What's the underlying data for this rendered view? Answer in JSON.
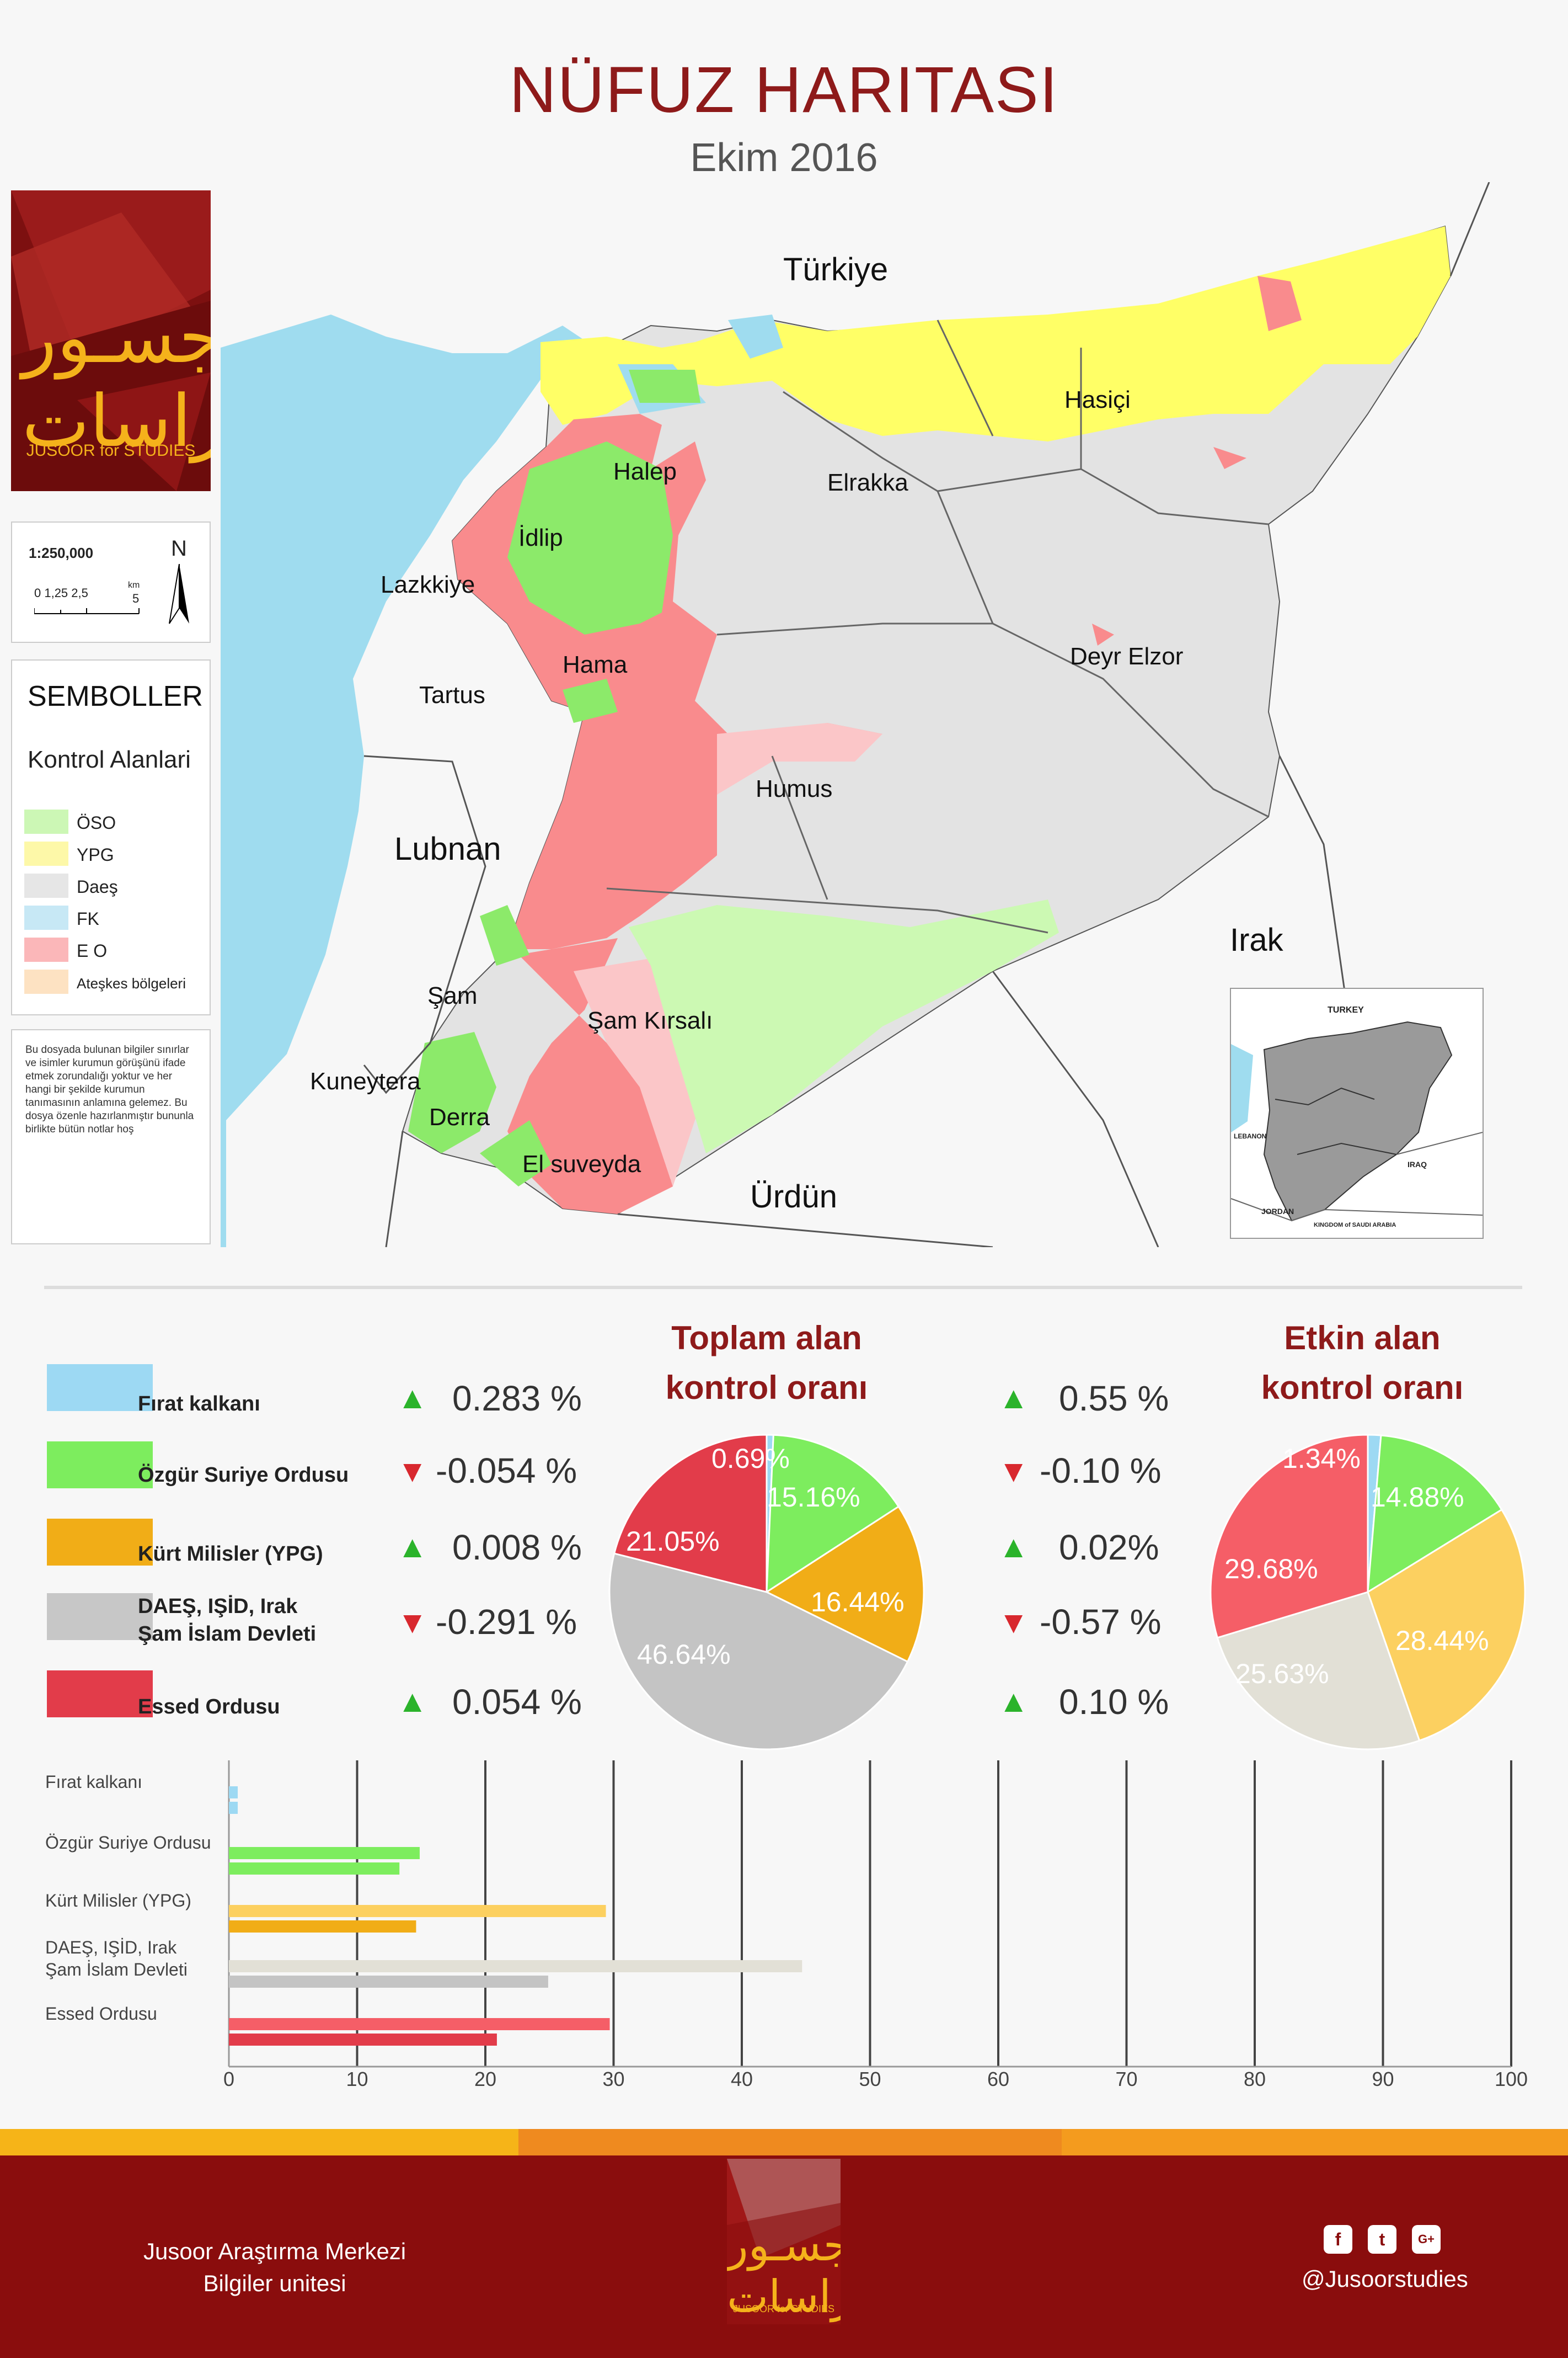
{
  "header": {
    "title": "NÜFUZ HARITASI",
    "subtitle": "Ekim  2016"
  },
  "logo": {
    "arabic": "جسـور للدراسات",
    "english": "JUSOOR for STUDIES"
  },
  "scale": {
    "ratio": "1:250,000",
    "ticks": "0  1,25   2,5",
    "km_label": "km",
    "km_value": "5",
    "north": "N"
  },
  "legend": {
    "title": "SEMBOLLER",
    "subtitle": "Kontrol Alanlari",
    "items": [
      {
        "label": "ÖSO",
        "color": "#ccf7b5"
      },
      {
        "label": "YPG",
        "color": "#fdf8a8"
      },
      {
        "label": "Daeş",
        "color": "#e6e6e6"
      },
      {
        "label": "FK",
        "color": "#c7e8f5"
      },
      {
        "label": "E O",
        "color": "#fbb7b9"
      },
      {
        "label": "Ateşkes bölgeleri",
        "color": "#fde2c2"
      }
    ]
  },
  "note": "Bu dosyada bulunan bilgiler sınırlar ve isimler kurumun görüşünü ifade etmek zorundalığı yoktur ve her hangi bir şekilde kurumun tanımasının anlamına gelemez. Bu dosya özenle hazırlanmıştır bununla birlikte bütün notlar hoş",
  "map": {
    "countries": {
      "turkey": "Türkiye",
      "lebanon": "Lubnan",
      "iraq": "Irak",
      "jordan": "Ürdün"
    },
    "places": {
      "halep": "Halep",
      "idlip": "İdlip",
      "lazkiye": "Lazkkiye",
      "hama": "Hama",
      "tartus": "Tartus",
      "elrakka": "Elrakka",
      "hasici": "Hasiçi",
      "deyr": "Deyr Elzor",
      "humus": "Humus",
      "sam": "Şam",
      "samkirsali": "Şam Kırsalı",
      "kuneytera": "Kuneytera",
      "derra": "Derra",
      "suveyda": "El suveyda"
    },
    "colors": {
      "sea": "#9fdcef",
      "oso": "#8cea6a",
      "ypg": "#ffff66",
      "daes": "#e3e3e3",
      "eo": "#f98b8d",
      "eo_light": "#fbc6c8",
      "oso_light": "#ccf9b3",
      "fk": "#9fdcef"
    }
  },
  "inset": {
    "turkey": "TURKEY",
    "lebanon": "LEBANON",
    "iraq": "IRAQ",
    "jordan": "JORDAN",
    "saudi": "KINGDOM of SAUDI ARABIA"
  },
  "stats": {
    "pie1_title": [
      "Toplam alan",
      "kontrol oranı"
    ],
    "pie2_title": [
      "Etkin alan",
      "kontrol oranı"
    ],
    "rows": [
      {
        "label": "Fırat kalkanı",
        "color": "#9dd9f3",
        "change1": "0.283 %",
        "dir1": "up",
        "change2": "0.55 %",
        "dir2": "up"
      },
      {
        "label": "Özgür Suriye Ordusu",
        "color": "#7ded5e",
        "change1": "-0.054 %",
        "dir1": "down",
        "change2": "-0.10 %",
        "dir2": "down"
      },
      {
        "label": "Kürt  Milisler (YPG)",
        "color": "#f1ad17",
        "change1": "0.008 %",
        "dir1": "up",
        "change2": "0.02%",
        "dir2": "up"
      },
      {
        "label": "DAEŞ, IŞİD, Irak",
        "label2": "Şam İslam Devleti",
        "color": "#c7c7c7",
        "change1": "-0.291 %",
        "dir1": "down",
        "change2": "-0.57 %",
        "dir2": "down"
      },
      {
        "label": "Essed Ordusu",
        "color": "#e23c4a",
        "change1": "0.054 %",
        "dir1": "up",
        "change2": "0.10 %",
        "dir2": "up"
      }
    ]
  },
  "chart_data": [
    {
      "type": "pie",
      "title": "Toplam alan kontrol oranı",
      "categories": [
        "Fırat kalkanı",
        "Özgür Suriye Ordusu",
        "Kürt  Milisler (YPG)",
        "DAEŞ, IŞİD, Irak Şam İslam Devleti",
        "Essed Ordusu"
      ],
      "values": [
        0.69,
        15.16,
        16.44,
        46.64,
        21.05
      ],
      "labels": [
        "0.69%",
        "15.16%",
        "16.44%",
        "46.64%",
        "21.05%"
      ],
      "colors": [
        "#9dd9f3",
        "#7ded5e",
        "#f1ad17",
        "#c4c4c4",
        "#e23c4a"
      ]
    },
    {
      "type": "pie",
      "title": "Etkin alan kontrol oranı",
      "categories": [
        "Fırat kalkanı",
        "Özgür Suriye Ordusu",
        "Kürt  Milisler (YPG)",
        "DAEŞ, IŞİD, Irak Şam İslam Devleti",
        "Essed Ordusu"
      ],
      "values": [
        1.34,
        14.88,
        28.44,
        25.63,
        29.68
      ],
      "labels": [
        "1.34%",
        "14.88%",
        "28.44%",
        "25.63%",
        "29.68%"
      ],
      "colors": [
        "#9dd9f3",
        "#7ded5e",
        "#fcd060",
        "#e2e0d6",
        "#f55e67"
      ]
    },
    {
      "type": "bar",
      "orientation": "horizontal",
      "categories": [
        "Fırat kalkanı",
        "Özgür Suriye Ordusu",
        "Kürt  Milisler (YPG)",
        "DAEŞ, IŞİD, Irak Şam İslam Devleti",
        "Essed Ordusu"
      ],
      "category_lines": [
        [
          "Fırat kalkanı"
        ],
        [
          "Özgür Suriye Ordusu"
        ],
        [
          "Kürt  Milisler (YPG)"
        ],
        [
          "DAEŞ, IŞİD, Irak",
          "Şam İslam Devleti"
        ],
        [
          "Essed Ordusu"
        ]
      ],
      "series": [
        {
          "values": [
            0.69,
            14.88,
            29.4,
            44.7,
            29.7
          ],
          "colors": [
            "#9dd9f3",
            "#7ded5e",
            "#fcd060",
            "#e2e0d6",
            "#f55e67"
          ]
        },
        {
          "values": [
            0.69,
            13.3,
            14.6,
            24.9,
            20.9
          ],
          "colors": [
            "#9dd9f3",
            "#7ded5e",
            "#f1ad17",
            "#c4c4c4",
            "#e23c4a"
          ]
        }
      ],
      "xlim": [
        0,
        100
      ],
      "xticks": [
        "0",
        "10",
        "20",
        "30",
        "40",
        "50",
        "60",
        "70",
        "80",
        "90",
        "100"
      ]
    }
  ],
  "footer": {
    "org_line1": "Jusoor Araştırma Merkezi",
    "org_line2": "Bilgiler unitesi",
    "handle": "@Jusoorstudies",
    "social": [
      "f",
      "t",
      "G+"
    ]
  }
}
